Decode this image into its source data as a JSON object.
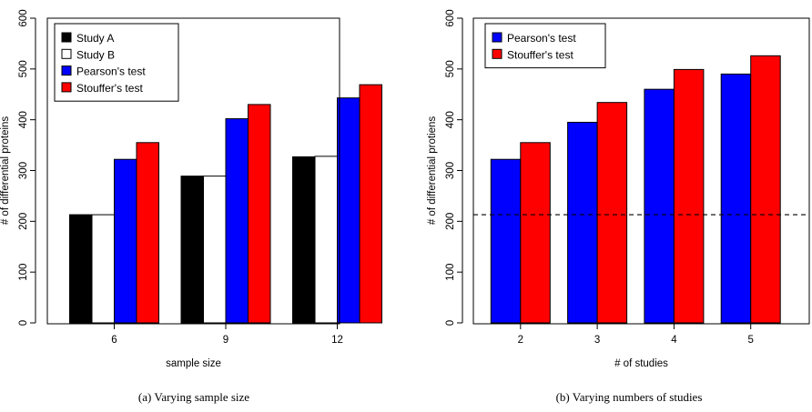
{
  "chart_data": [
    {
      "type": "bar",
      "caption": "(a)  Varying sample size",
      "xlabel": "sample size",
      "ylabel": "# of differential proteins",
      "ylim": [
        0,
        600
      ],
      "yticks": [
        0,
        100,
        200,
        300,
        400,
        500,
        600
      ],
      "categories": [
        "6",
        "9",
        "12"
      ],
      "legend_position": "top-left",
      "series": [
        {
          "name": "Study A",
          "color": "#000000",
          "values": [
            213,
            289,
            327
          ]
        },
        {
          "name": "Study B",
          "color": "#ffffff",
          "values": [
            213,
            289,
            328
          ]
        },
        {
          "name": "Pearson's test",
          "color": "#0000ff",
          "values": [
            322,
            402,
            443
          ]
        },
        {
          "name": "Stouffer's test",
          "color": "#ff0000",
          "values": [
            355,
            430,
            469
          ]
        }
      ]
    },
    {
      "type": "bar",
      "caption": "(b)  Varying numbers of studies",
      "xlabel": "# of studies",
      "ylabel": "# of differential protiens",
      "ylim": [
        0,
        600
      ],
      "yticks": [
        0,
        100,
        200,
        300,
        400,
        500,
        600
      ],
      "categories": [
        "2",
        "3",
        "4",
        "5"
      ],
      "legend_position": "top-left",
      "reference_line": {
        "value": 213,
        "style": "dashed"
      },
      "series": [
        {
          "name": "Pearson's test",
          "color": "#0000ff",
          "values": [
            322,
            395,
            460,
            490
          ]
        },
        {
          "name": "Stouffer's test",
          "color": "#ff0000",
          "values": [
            355,
            434,
            499,
            526
          ]
        }
      ]
    }
  ]
}
